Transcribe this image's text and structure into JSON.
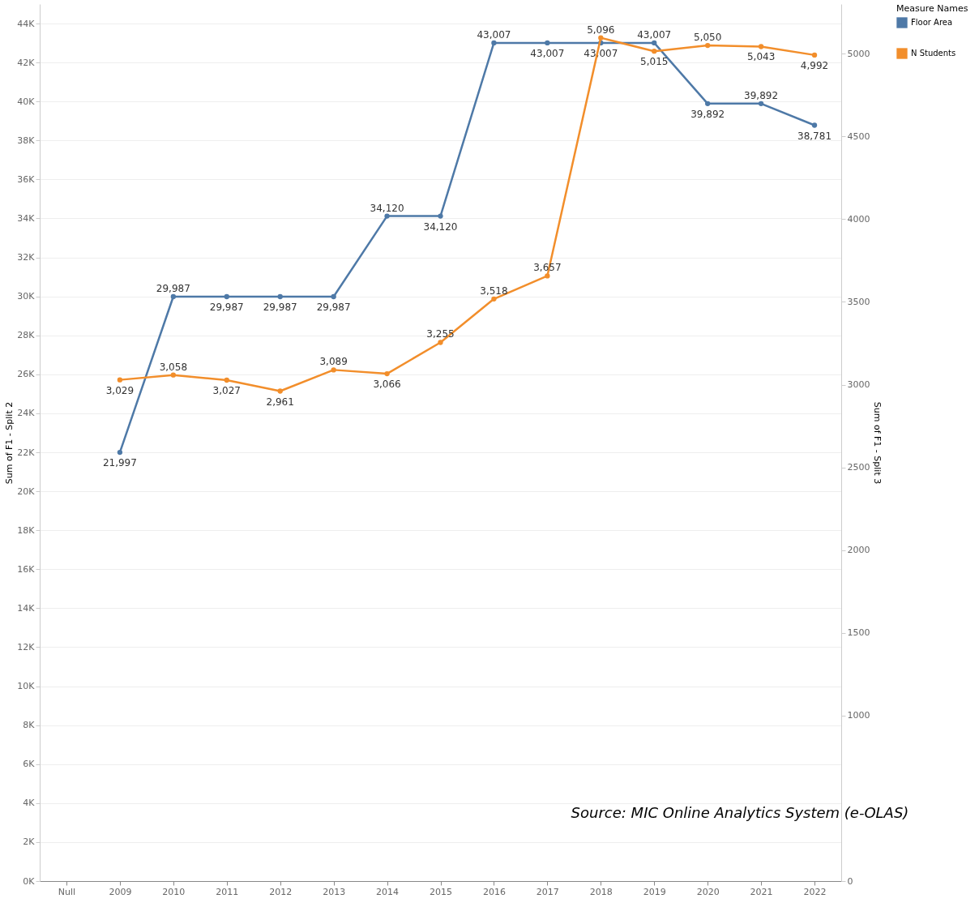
{
  "chart_data": {
    "type": "line",
    "categories": [
      "Null",
      "2009",
      "2010",
      "2011",
      "2012",
      "2013",
      "2014",
      "2015",
      "2016",
      "2017",
      "2018",
      "2019",
      "2020",
      "2021",
      "2022"
    ],
    "series": [
      {
        "name": "Floor Area",
        "color": "#4e79a7",
        "values": [
          null,
          21997,
          29987,
          29987,
          29987,
          29987,
          34120,
          34120,
          43007,
          43007,
          43007,
          43007,
          39892,
          39892,
          38781
        ],
        "value_labels": [
          null,
          "21,997",
          "29,987",
          "29,987",
          "29,987",
          "29,987",
          "34,120",
          "34,120",
          "43,007",
          "43,007",
          "43,007",
          "43,007",
          "39,892",
          "39,892",
          "38,781"
        ]
      },
      {
        "name": "N Students",
        "color": "#f28e2b",
        "axis": "y2",
        "values": [
          null,
          3029,
          3058,
          3027,
          2961,
          3089,
          3066,
          3255,
          3518,
          3657,
          5096,
          5015,
          5050,
          5043,
          4992
        ],
        "value_labels": [
          null,
          "3,029",
          "3,058",
          "3,027",
          "2,961",
          "3,089",
          "3,066",
          "3,255",
          "3,518",
          "3,657",
          "5,096",
          "5,015",
          "5,050",
          "5,043",
          "4,992"
        ]
      }
    ],
    "ylabel": "Sum of F1 - Split 2",
    "y2label": "Sum of F1 - Split 3",
    "legend_title": "Measure Names",
    "ylim": [
      0,
      45000
    ],
    "yticks": [
      {
        "value": 0,
        "label": "0K"
      },
      {
        "value": 2000,
        "label": "2K"
      },
      {
        "value": 4000,
        "label": "4K"
      },
      {
        "value": 6000,
        "label": "6K"
      },
      {
        "value": 8000,
        "label": "8K"
      },
      {
        "value": 10000,
        "label": "10K"
      },
      {
        "value": 12000,
        "label": "12K"
      },
      {
        "value": 14000,
        "label": "14K"
      },
      {
        "value": 16000,
        "label": "16K"
      },
      {
        "value": 18000,
        "label": "18K"
      },
      {
        "value": 20000,
        "label": "20K"
      },
      {
        "value": 22000,
        "label": "22K"
      },
      {
        "value": 24000,
        "label": "24K"
      },
      {
        "value": 26000,
        "label": "26K"
      },
      {
        "value": 28000,
        "label": "28K"
      },
      {
        "value": 30000,
        "label": "30K"
      },
      {
        "value": 32000,
        "label": "32K"
      },
      {
        "value": 34000,
        "label": "34K"
      },
      {
        "value": 36000,
        "label": "36K"
      },
      {
        "value": 38000,
        "label": "38K"
      },
      {
        "value": 40000,
        "label": "40K"
      },
      {
        "value": 42000,
        "label": "42K"
      },
      {
        "value": 44000,
        "label": "44K"
      }
    ],
    "y2lim": [
      0,
      5300
    ],
    "y2ticks": [
      0,
      1000,
      1500,
      2000,
      2500,
      3000,
      3500,
      4000,
      4500,
      5000
    ],
    "grid": "y",
    "legend": "top right",
    "marker": "circle",
    "line_style": "solid",
    "annotations": [
      "Source: MIC Online Analytics System (e-OLAS)"
    ]
  }
}
